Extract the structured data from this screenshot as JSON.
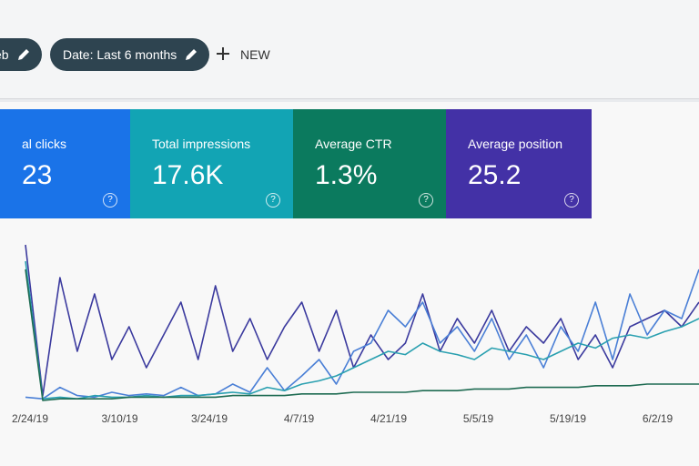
{
  "toolbar": {
    "chips": [
      "eb",
      "Date: Last 6 months"
    ],
    "new": "NEW"
  },
  "cards": [
    {
      "label": "al clicks",
      "value": "23",
      "help": "?",
      "color": "#1a73e8"
    },
    {
      "label": "Total impressions",
      "value": "17.6K",
      "help": "?",
      "color": "#12a4b4"
    },
    {
      "label": "Average CTR",
      "value": "1.3%",
      "help": "?",
      "color": "#0b7a5e"
    },
    {
      "label": "Average position",
      "value": "25.2",
      "help": "?",
      "color": "#4331a6"
    }
  ],
  "chart_data": {
    "type": "line",
    "x_labels": [
      "2/24/19",
      "3/10/19",
      "3/24/19",
      "4/7/19",
      "4/21/19",
      "5/5/19",
      "5/19/19",
      "6/2/19"
    ],
    "ylim": [
      0,
      100
    ],
    "series": [
      {
        "color": "#3b3a9e",
        "values": [
          95,
          3,
          75,
          30,
          65,
          25,
          45,
          20,
          40,
          60,
          25,
          70,
          30,
          50,
          25,
          45,
          60,
          30,
          55,
          20,
          40,
          25,
          35,
          65,
          30,
          50,
          35,
          55,
          30,
          45,
          35,
          50,
          25,
          40,
          20,
          45,
          50,
          55,
          45,
          60
        ]
      },
      {
        "color": "#4a7fd6",
        "values": [
          2,
          1,
          8,
          3,
          2,
          5,
          3,
          4,
          3,
          8,
          3,
          4,
          10,
          5,
          20,
          6,
          15,
          25,
          10,
          30,
          35,
          55,
          45,
          60,
          35,
          45,
          30,
          50,
          25,
          40,
          20,
          45,
          30,
          60,
          25,
          65,
          40,
          55,
          50,
          80
        ]
      },
      {
        "color": "#2aa0b0",
        "values": [
          85,
          1,
          2,
          1,
          3,
          2,
          2,
          3,
          2,
          3,
          3,
          4,
          5,
          4,
          8,
          6,
          10,
          12,
          15,
          20,
          25,
          30,
          28,
          35,
          30,
          28,
          25,
          32,
          30,
          28,
          25,
          30,
          35,
          32,
          38,
          40,
          38,
          42,
          45,
          50
        ]
      },
      {
        "color": "#1e6b52",
        "values": [
          80,
          0,
          1,
          1,
          1,
          1,
          2,
          2,
          2,
          2,
          2,
          2,
          3,
          3,
          3,
          3,
          4,
          4,
          4,
          5,
          5,
          5,
          5,
          6,
          6,
          6,
          7,
          7,
          7,
          8,
          8,
          8,
          8,
          9,
          9,
          9,
          10,
          10,
          10,
          10
        ]
      }
    ]
  }
}
